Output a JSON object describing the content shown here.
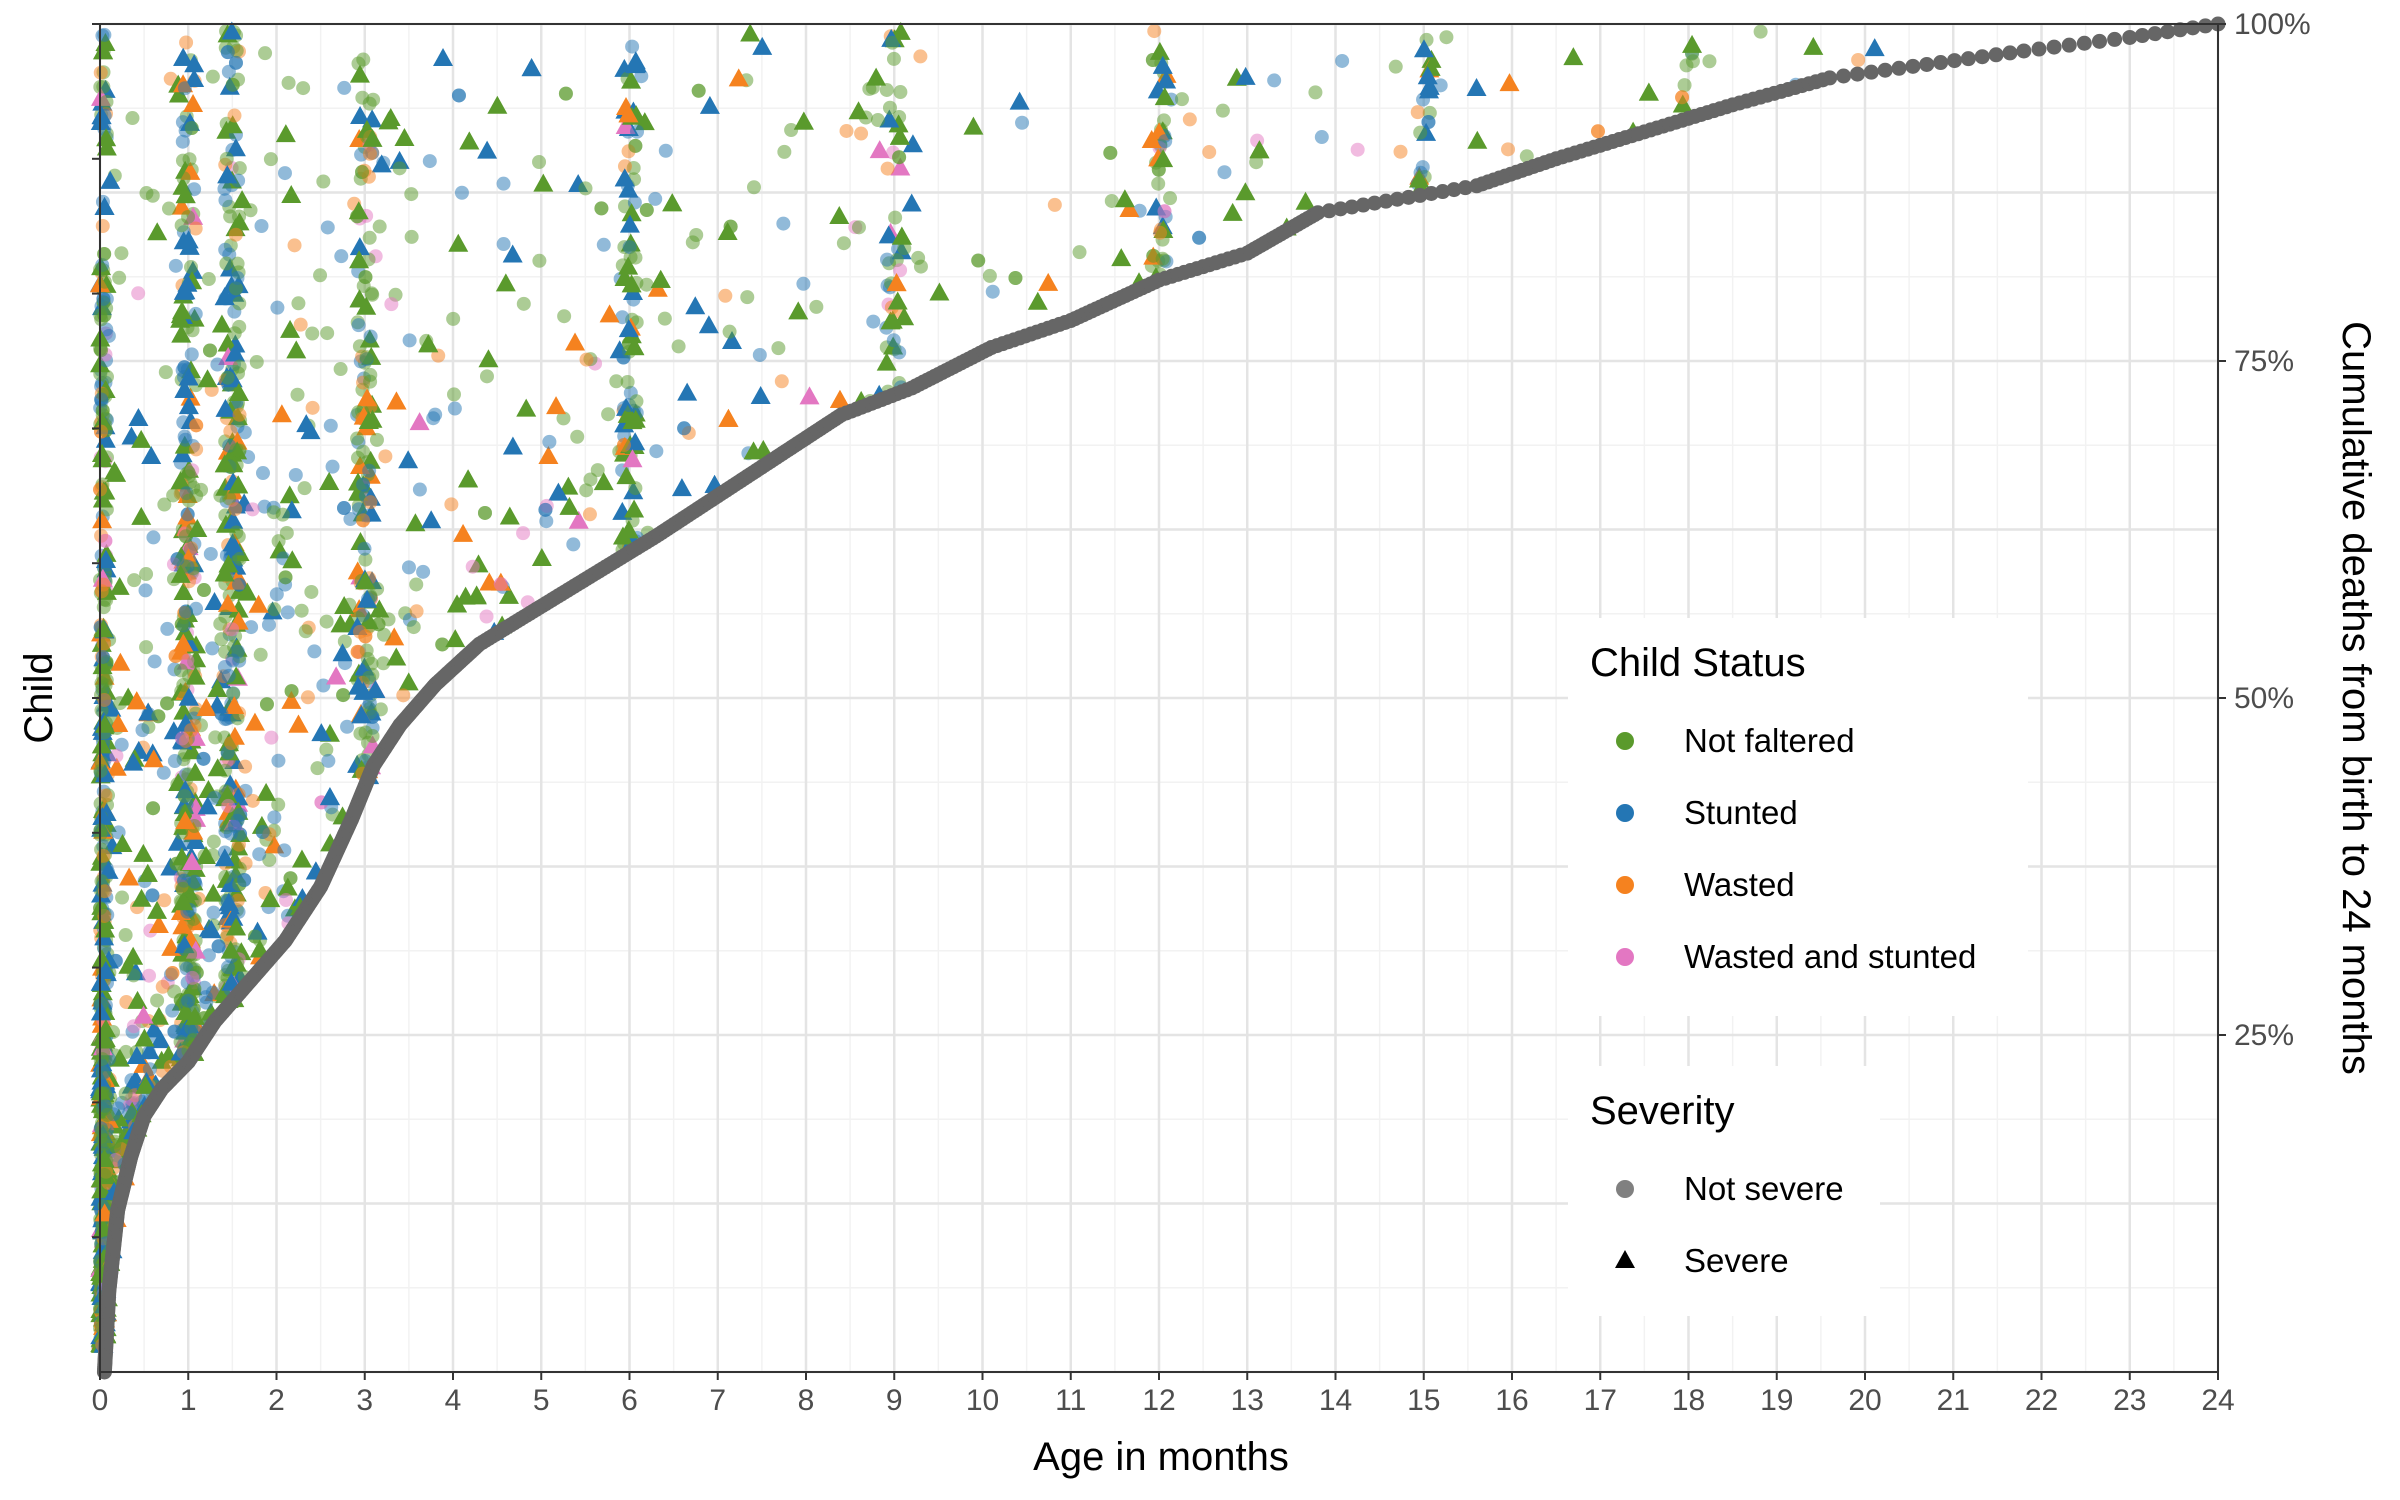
{
  "chart_data": {
    "type": "scatter",
    "xlabel": "Age in months",
    "ylabel": "Child",
    "y2label": "Cumulative deaths from birth to 24 months",
    "xlim": [
      0,
      24
    ],
    "x_ticks": [
      "0",
      "1",
      "2",
      "3",
      "4",
      "5",
      "6",
      "7",
      "8",
      "9",
      "10",
      "11",
      "12",
      "13",
      "14",
      "15",
      "16",
      "17",
      "18",
      "19",
      "20",
      "21",
      "22",
      "23",
      "24"
    ],
    "y2lim": [
      0,
      1
    ],
    "y2_ticks": [
      {
        "value": 0.25,
        "label": "25%"
      },
      {
        "value": 0.5,
        "label": "50%"
      },
      {
        "value": 0.75,
        "label": "75%"
      },
      {
        "value": 1.0,
        "label": "100%"
      }
    ],
    "grid": true,
    "legend_placement": "right-inside",
    "cumulative_deaths_curve": {
      "name": "Cumulative deaths",
      "color": "#666666",
      "x": [
        0.05,
        0.1,
        0.2,
        0.35,
        0.5,
        0.7,
        1.0,
        1.3,
        1.7,
        2.1,
        2.5,
        2.85,
        3.1,
        3.4,
        3.8,
        4.3,
        4.8,
        5.3,
        5.8,
        6.3,
        7.0,
        7.7,
        8.4,
        9.2,
        10.1,
        11.0,
        12.0,
        13.0,
        13.8,
        14.7,
        15.6,
        16.5,
        17.5,
        18.5,
        19.6,
        20.7,
        21.8,
        23.0,
        24.0
      ],
      "y": [
        0.0,
        0.06,
        0.12,
        0.16,
        0.19,
        0.21,
        0.23,
        0.26,
        0.29,
        0.32,
        0.36,
        0.41,
        0.45,
        0.48,
        0.51,
        0.54,
        0.56,
        0.58,
        0.6,
        0.62,
        0.65,
        0.68,
        0.71,
        0.73,
        0.76,
        0.78,
        0.81,
        0.83,
        0.86,
        0.87,
        0.88,
        0.9,
        0.92,
        0.94,
        0.96,
        0.97,
        0.98,
        0.99,
        1.0
      ]
    },
    "status_clusters_months": [
      0,
      1,
      1.5,
      3,
      6,
      9,
      12,
      15,
      18
    ],
    "status_series": [
      {
        "name": "Not faltered",
        "color": "#5a9a2c",
        "weight": 0.48
      },
      {
        "name": "Stunted",
        "color": "#2476b4",
        "weight": 0.32
      },
      {
        "name": "Wasted",
        "color": "#f5821f",
        "weight": 0.15
      },
      {
        "name": "Wasted and stunted",
        "color": "#e377c2",
        "weight": 0.05
      }
    ],
    "severity_series": [
      {
        "name": "Not severe",
        "shape": "circle",
        "weight": 0.62
      },
      {
        "name": "Severe",
        "shape": "triangle",
        "weight": 0.38
      }
    ],
    "legend": {
      "status_title": "Child Status",
      "status_items": [
        "Not faltered",
        "Stunted",
        "Wasted",
        "Wasted and stunted"
      ],
      "severity_title": "Severity",
      "severity_items": [
        "Not severe",
        "Severe"
      ],
      "legend_symbol_color": "#000000",
      "legend_severity_circle_color": "#808080"
    }
  }
}
